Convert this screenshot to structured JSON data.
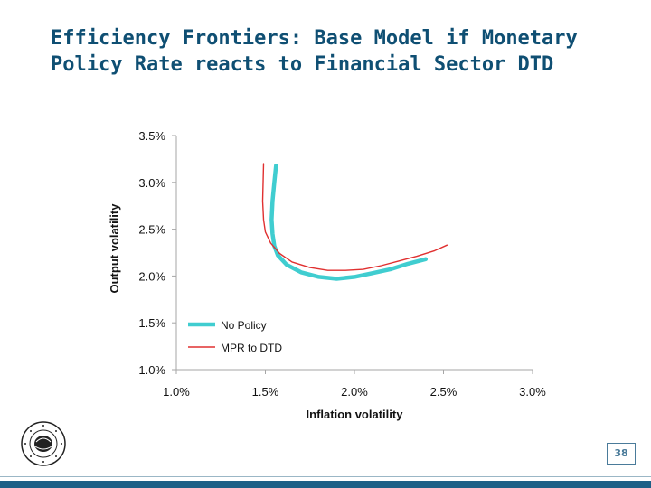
{
  "slide": {
    "title": "Efficiency Frontiers: Base Model if Monetary\nPolicy Rate reacts to Financial Sector DTD",
    "page_number": "38"
  },
  "colors": {
    "title": "#0f4f73",
    "no_policy": "#40cdd0",
    "mpr_to_dtd": "#e03030",
    "axis": "#a6a6a6"
  },
  "chart_data": {
    "type": "line",
    "title": "",
    "xlabel": "Inflation volatility",
    "ylabel": "Output volatility",
    "xlim": [
      1.0,
      3.0
    ],
    "ylim": [
      1.0,
      3.5
    ],
    "xticks": [
      1.0,
      1.5,
      2.0,
      2.5,
      3.0
    ],
    "yticks": [
      1.0,
      1.5,
      2.0,
      2.5,
      3.0,
      3.5
    ],
    "xtick_labels": [
      "1.0%",
      "1.5%",
      "2.0%",
      "2.5%",
      "3.0%"
    ],
    "ytick_labels": [
      "1.0%",
      "1.5%",
      "2.0%",
      "2.5%",
      "3.0%",
      "3.5%"
    ],
    "legend_position": "bottom-left",
    "series": [
      {
        "name": "No Policy",
        "style": "thick",
        "x": [
          1.56,
          1.55,
          1.54,
          1.535,
          1.54,
          1.55,
          1.57,
          1.62,
          1.7,
          1.8,
          1.9,
          2.0,
          2.1,
          2.2,
          2.3,
          2.4
        ],
        "y": [
          3.18,
          3.0,
          2.8,
          2.6,
          2.45,
          2.32,
          2.22,
          2.12,
          2.04,
          1.99,
          1.97,
          1.99,
          2.03,
          2.07,
          2.13,
          2.18
        ]
      },
      {
        "name": "MPR to DTD",
        "style": "thin",
        "x": [
          1.49,
          1.485,
          1.49,
          1.5,
          1.53,
          1.58,
          1.65,
          1.75,
          1.85,
          1.95,
          2.05,
          2.15,
          2.25,
          2.35,
          2.45,
          2.52
        ],
        "y": [
          3.2,
          2.8,
          2.6,
          2.47,
          2.35,
          2.24,
          2.15,
          2.09,
          2.06,
          2.06,
          2.07,
          2.11,
          2.16,
          2.21,
          2.27,
          2.33
        ]
      }
    ]
  }
}
